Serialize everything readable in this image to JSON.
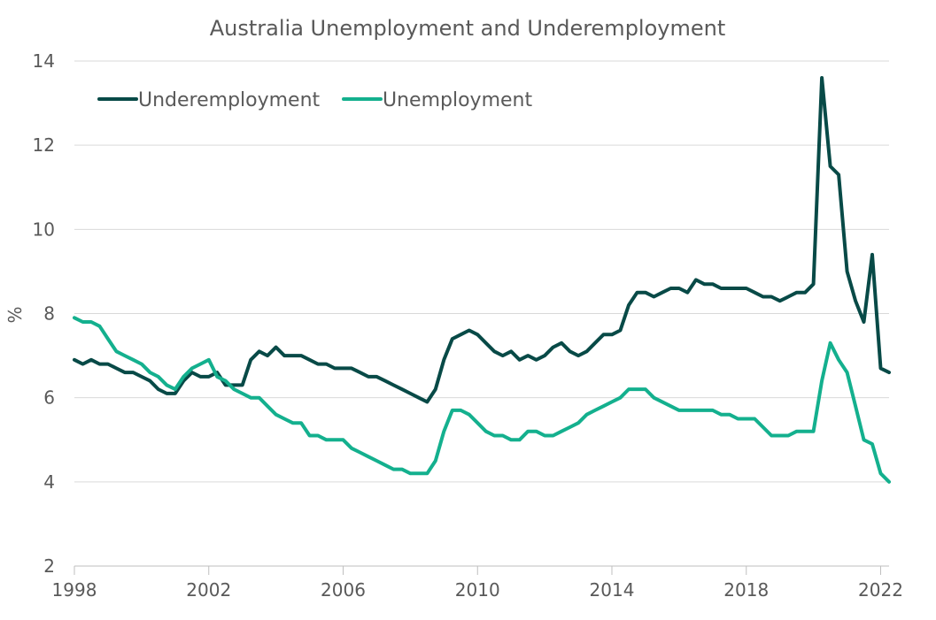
{
  "chart_data": {
    "type": "line",
    "title": "Australia Unemployment and Underemployment",
    "xlabel": "",
    "ylabel": "%",
    "xlim": [
      1998.0,
      2022.25
    ],
    "ylim": [
      2,
      14
    ],
    "yticks": [
      2,
      4,
      6,
      8,
      10,
      12,
      14
    ],
    "xticks": [
      1998,
      2002,
      2006,
      2010,
      2014,
      2018,
      2022
    ],
    "grid": true,
    "legend": "top-left",
    "series": [
      {
        "name": "Underemployment",
        "color": "#084a47",
        "points": [
          [
            1998.0,
            6.9
          ],
          [
            1998.25,
            6.8
          ],
          [
            1998.5,
            6.9
          ],
          [
            1998.75,
            6.8
          ],
          [
            1999.0,
            6.8
          ],
          [
            1999.25,
            6.7
          ],
          [
            1999.5,
            6.6
          ],
          [
            1999.75,
            6.6
          ],
          [
            2000.0,
            6.5
          ],
          [
            2000.25,
            6.4
          ],
          [
            2000.5,
            6.2
          ],
          [
            2000.75,
            6.1
          ],
          [
            2001.0,
            6.1
          ],
          [
            2001.25,
            6.4
          ],
          [
            2001.5,
            6.6
          ],
          [
            2001.75,
            6.5
          ],
          [
            2002.0,
            6.5
          ],
          [
            2002.25,
            6.6
          ],
          [
            2002.5,
            6.3
          ],
          [
            2002.75,
            6.3
          ],
          [
            2003.0,
            6.3
          ],
          [
            2003.25,
            6.9
          ],
          [
            2003.5,
            7.1
          ],
          [
            2003.75,
            7.0
          ],
          [
            2004.0,
            7.2
          ],
          [
            2004.25,
            7.0
          ],
          [
            2004.5,
            7.0
          ],
          [
            2004.75,
            7.0
          ],
          [
            2005.0,
            6.9
          ],
          [
            2005.25,
            6.8
          ],
          [
            2005.5,
            6.8
          ],
          [
            2005.75,
            6.7
          ],
          [
            2006.0,
            6.7
          ],
          [
            2006.25,
            6.7
          ],
          [
            2006.5,
            6.6
          ],
          [
            2006.75,
            6.5
          ],
          [
            2007.0,
            6.5
          ],
          [
            2007.25,
            6.4
          ],
          [
            2007.5,
            6.3
          ],
          [
            2007.75,
            6.2
          ],
          [
            2008.0,
            6.1
          ],
          [
            2008.25,
            6.0
          ],
          [
            2008.5,
            5.9
          ],
          [
            2008.75,
            6.2
          ],
          [
            2009.0,
            6.9
          ],
          [
            2009.25,
            7.4
          ],
          [
            2009.5,
            7.5
          ],
          [
            2009.75,
            7.6
          ],
          [
            2010.0,
            7.5
          ],
          [
            2010.25,
            7.3
          ],
          [
            2010.5,
            7.1
          ],
          [
            2010.75,
            7.0
          ],
          [
            2011.0,
            7.1
          ],
          [
            2011.25,
            6.9
          ],
          [
            2011.5,
            7.0
          ],
          [
            2011.75,
            6.9
          ],
          [
            2012.0,
            7.0
          ],
          [
            2012.25,
            7.2
          ],
          [
            2012.5,
            7.3
          ],
          [
            2012.75,
            7.1
          ],
          [
            2013.0,
            7.0
          ],
          [
            2013.25,
            7.1
          ],
          [
            2013.5,
            7.3
          ],
          [
            2013.75,
            7.5
          ],
          [
            2014.0,
            7.5
          ],
          [
            2014.25,
            7.6
          ],
          [
            2014.5,
            8.2
          ],
          [
            2014.75,
            8.5
          ],
          [
            2015.0,
            8.5
          ],
          [
            2015.25,
            8.4
          ],
          [
            2015.5,
            8.5
          ],
          [
            2015.75,
            8.6
          ],
          [
            2016.0,
            8.6
          ],
          [
            2016.25,
            8.5
          ],
          [
            2016.5,
            8.8
          ],
          [
            2016.75,
            8.7
          ],
          [
            2017.0,
            8.7
          ],
          [
            2017.25,
            8.6
          ],
          [
            2017.5,
            8.6
          ],
          [
            2017.75,
            8.6
          ],
          [
            2018.0,
            8.6
          ],
          [
            2018.25,
            8.5
          ],
          [
            2018.5,
            8.4
          ],
          [
            2018.75,
            8.4
          ],
          [
            2019.0,
            8.3
          ],
          [
            2019.25,
            8.4
          ],
          [
            2019.5,
            8.5
          ],
          [
            2019.75,
            8.5
          ],
          [
            2020.0,
            8.7
          ],
          [
            2020.25,
            13.6
          ],
          [
            2020.5,
            11.5
          ],
          [
            2020.75,
            11.3
          ],
          [
            2021.0,
            9.0
          ],
          [
            2021.25,
            8.3
          ],
          [
            2021.5,
            7.8
          ],
          [
            2021.75,
            9.4
          ],
          [
            2022.0,
            6.7
          ],
          [
            2022.25,
            6.6
          ]
        ]
      },
      {
        "name": "Unemployment",
        "color": "#14b08e",
        "points": [
          [
            1998.0,
            7.9
          ],
          [
            1998.25,
            7.8
          ],
          [
            1998.5,
            7.8
          ],
          [
            1998.75,
            7.7
          ],
          [
            1999.0,
            7.4
          ],
          [
            1999.25,
            7.1
          ],
          [
            1999.5,
            7.0
          ],
          [
            1999.75,
            6.9
          ],
          [
            2000.0,
            6.8
          ],
          [
            2000.25,
            6.6
          ],
          [
            2000.5,
            6.5
          ],
          [
            2000.75,
            6.3
          ],
          [
            2001.0,
            6.2
          ],
          [
            2001.25,
            6.5
          ],
          [
            2001.5,
            6.7
          ],
          [
            2001.75,
            6.8
          ],
          [
            2002.0,
            6.9
          ],
          [
            2002.25,
            6.5
          ],
          [
            2002.5,
            6.4
          ],
          [
            2002.75,
            6.2
          ],
          [
            2003.0,
            6.1
          ],
          [
            2003.25,
            6.0
          ],
          [
            2003.5,
            6.0
          ],
          [
            2003.75,
            5.8
          ],
          [
            2004.0,
            5.6
          ],
          [
            2004.25,
            5.5
          ],
          [
            2004.5,
            5.4
          ],
          [
            2004.75,
            5.4
          ],
          [
            2005.0,
            5.1
          ],
          [
            2005.25,
            5.1
          ],
          [
            2005.5,
            5.0
          ],
          [
            2005.75,
            5.0
          ],
          [
            2006.0,
            5.0
          ],
          [
            2006.25,
            4.8
          ],
          [
            2006.5,
            4.7
          ],
          [
            2006.75,
            4.6
          ],
          [
            2007.0,
            4.5
          ],
          [
            2007.25,
            4.4
          ],
          [
            2007.5,
            4.3
          ],
          [
            2007.75,
            4.3
          ],
          [
            2008.0,
            4.2
          ],
          [
            2008.25,
            4.2
          ],
          [
            2008.5,
            4.2
          ],
          [
            2008.75,
            4.5
          ],
          [
            2009.0,
            5.2
          ],
          [
            2009.25,
            5.7
          ],
          [
            2009.5,
            5.7
          ],
          [
            2009.75,
            5.6
          ],
          [
            2010.0,
            5.4
          ],
          [
            2010.25,
            5.2
          ],
          [
            2010.5,
            5.1
          ],
          [
            2010.75,
            5.1
          ],
          [
            2011.0,
            5.0
          ],
          [
            2011.25,
            5.0
          ],
          [
            2011.5,
            5.2
          ],
          [
            2011.75,
            5.2
          ],
          [
            2012.0,
            5.1
          ],
          [
            2012.25,
            5.1
          ],
          [
            2012.5,
            5.2
          ],
          [
            2012.75,
            5.3
          ],
          [
            2013.0,
            5.4
          ],
          [
            2013.25,
            5.6
          ],
          [
            2013.5,
            5.7
          ],
          [
            2013.75,
            5.8
          ],
          [
            2014.0,
            5.9
          ],
          [
            2014.25,
            6.0
          ],
          [
            2014.5,
            6.2
          ],
          [
            2014.75,
            6.2
          ],
          [
            2015.0,
            6.2
          ],
          [
            2015.25,
            6.0
          ],
          [
            2015.5,
            5.9
          ],
          [
            2015.75,
            5.8
          ],
          [
            2016.0,
            5.7
          ],
          [
            2016.25,
            5.7
          ],
          [
            2016.5,
            5.7
          ],
          [
            2016.75,
            5.7
          ],
          [
            2017.0,
            5.7
          ],
          [
            2017.25,
            5.6
          ],
          [
            2017.5,
            5.6
          ],
          [
            2017.75,
            5.5
          ],
          [
            2018.0,
            5.5
          ],
          [
            2018.25,
            5.5
          ],
          [
            2018.5,
            5.3
          ],
          [
            2018.75,
            5.1
          ],
          [
            2019.0,
            5.1
          ],
          [
            2019.25,
            5.1
          ],
          [
            2019.5,
            5.2
          ],
          [
            2019.75,
            5.2
          ],
          [
            2020.0,
            5.2
          ],
          [
            2020.25,
            6.4
          ],
          [
            2020.5,
            7.3
          ],
          [
            2020.75,
            6.9
          ],
          [
            2021.0,
            6.6
          ],
          [
            2021.25,
            5.8
          ],
          [
            2021.5,
            5.0
          ],
          [
            2021.75,
            4.9
          ],
          [
            2022.0,
            4.2
          ],
          [
            2022.25,
            4.0
          ]
        ]
      }
    ]
  }
}
